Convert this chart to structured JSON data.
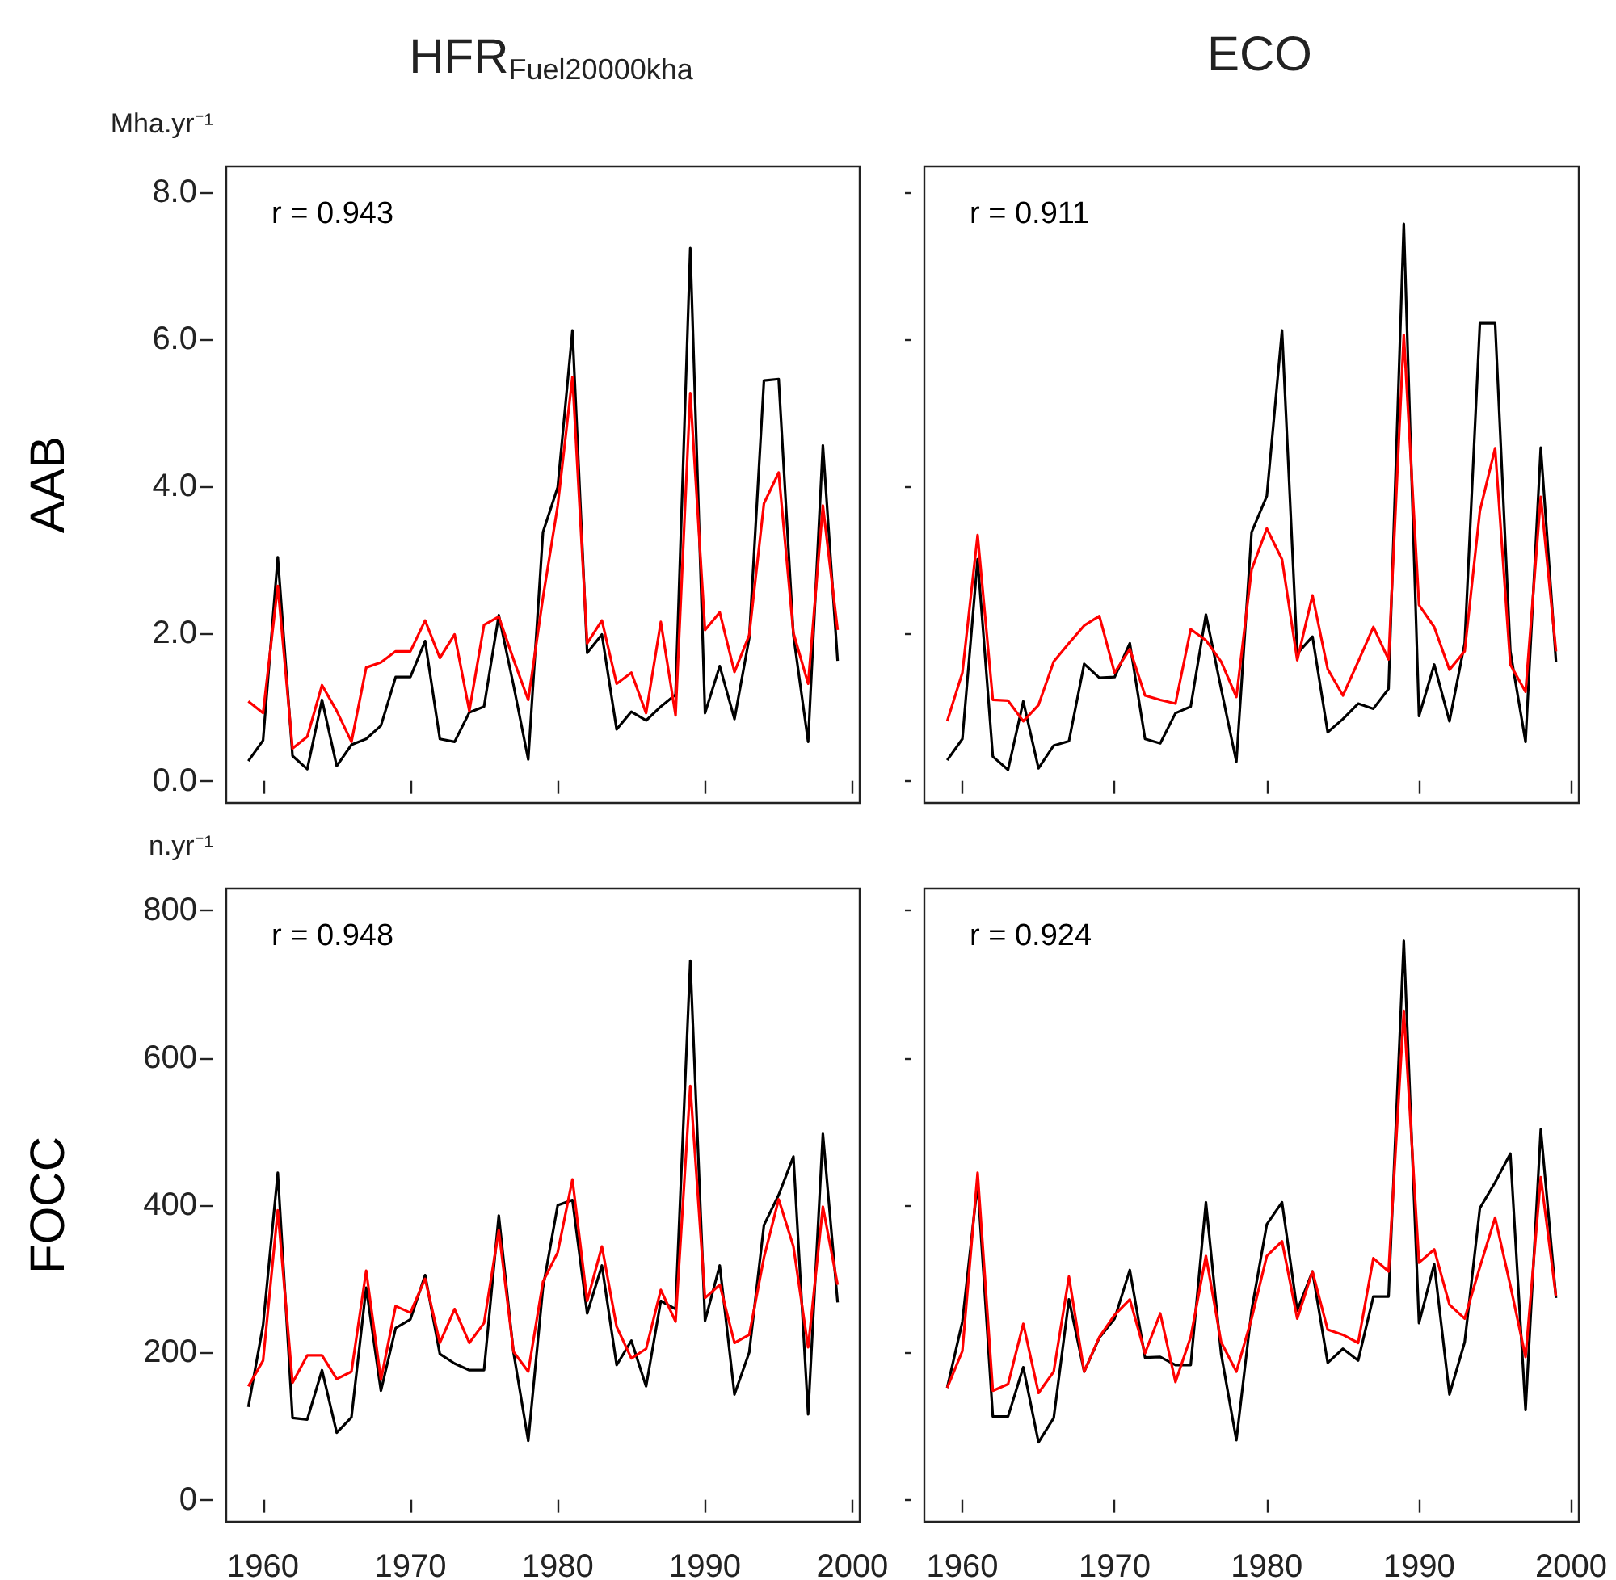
{
  "chart_data": [
    {
      "type": "line",
      "title": "HFR$_{Fuel20000kha}$",
      "ylabel": "Mha.yr⁻¹",
      "annotations": [
        "r = 0.943",
        "AAB"
      ],
      "tick_labels": "y",
      "x": [
        1959,
        1960,
        1961,
        1962,
        1963,
        1964,
        1965,
        1966,
        1967,
        1968,
        1969,
        1970,
        1971,
        1972,
        1973,
        1974,
        1975,
        1976,
        1977,
        1978,
        1979,
        1980,
        1981,
        1982,
        1983,
        1984,
        1985,
        1986,
        1987,
        1988,
        1989,
        1990,
        1991,
        1992,
        1993,
        1994,
        1995,
        1996,
        1997,
        1998,
        1999
      ],
      "xlim": [
        1957.5,
        2000.5
      ],
      "xticks": [
        1960,
        1970,
        1980,
        1990,
        2000
      ],
      "ylim": [
        -0.3,
        8.35
      ],
      "yticks": [
        {
          "value": 0,
          "label": "0.0"
        },
        {
          "value": 2,
          "label": "2.0"
        },
        {
          "value": 4,
          "label": "4.0"
        },
        {
          "value": 6,
          "label": "6.0"
        },
        {
          "value": 8,
          "label": "8.0"
        }
      ],
      "series": [
        {
          "color": "#000000",
          "values": [
            0.27,
            0.55,
            3.04,
            0.34,
            0.16,
            1.1,
            0.2,
            0.49,
            0.57,
            0.75,
            1.41,
            1.41,
            1.9,
            0.57,
            0.53,
            0.93,
            1.01,
            2.25,
            1.3,
            0.29,
            3.38,
            3.99,
            6.12,
            1.74,
            1.99,
            0.7,
            0.94,
            0.82,
            1.01,
            1.17,
            7.24,
            0.92,
            1.56,
            0.84,
            1.94,
            5.44,
            5.46,
            1.98,
            0.53,
            4.56,
            1.63
          ]
        },
        {
          "color": "#ff0000",
          "values": [
            1.08,
            0.92,
            2.65,
            0.44,
            0.6,
            1.3,
            0.95,
            0.53,
            1.54,
            1.61,
            1.76,
            1.76,
            2.18,
            1.67,
            1.99,
            0.95,
            2.12,
            2.23,
            1.65,
            1.1,
            2.49,
            3.74,
            5.49,
            1.87,
            2.18,
            1.32,
            1.47,
            0.92,
            2.16,
            0.89,
            5.27,
            2.05,
            2.29,
            1.48,
            1.98,
            3.77,
            4.19,
            2.01,
            1.32,
            3.74,
            2.05
          ]
        }
      ]
    },
    {
      "type": "line",
      "title": "ECO",
      "annotations": [
        "r = 0.911"
      ],
      "tick_labels": false,
      "x": [
        1959,
        1960,
        1961,
        1962,
        1963,
        1964,
        1965,
        1966,
        1967,
        1968,
        1969,
        1970,
        1971,
        1972,
        1973,
        1974,
        1975,
        1976,
        1977,
        1978,
        1979,
        1980,
        1981,
        1982,
        1983,
        1984,
        1985,
        1986,
        1987,
        1988,
        1989,
        1990,
        1991,
        1992,
        1993,
        1994,
        1995,
        1996,
        1997,
        1998,
        1999
      ],
      "xlim": [
        1957.5,
        2000.5
      ],
      "xticks": [
        1960,
        1970,
        1980,
        1990,
        2000
      ],
      "ylim": [
        -0.3,
        8.35
      ],
      "yticks": [
        0,
        2,
        4,
        6,
        8
      ],
      "series": [
        {
          "color": "#000000",
          "values": [
            0.28,
            0.57,
            3.01,
            0.33,
            0.15,
            1.08,
            0.17,
            0.48,
            0.54,
            1.59,
            1.4,
            1.41,
            1.87,
            0.57,
            0.51,
            0.92,
            1.01,
            2.26,
            1.25,
            0.26,
            3.38,
            3.87,
            6.12,
            1.73,
            1.96,
            0.66,
            0.84,
            1.05,
            0.98,
            1.25,
            7.57,
            0.88,
            1.58,
            0.81,
            1.87,
            6.22,
            6.22,
            1.76,
            0.53,
            4.53,
            1.62
          ]
        },
        {
          "color": "#ff0000",
          "values": [
            0.81,
            1.47,
            3.34,
            1.1,
            1.09,
            0.81,
            1.03,
            1.62,
            1.87,
            2.11,
            2.24,
            1.47,
            1.79,
            1.16,
            1.1,
            1.05,
            2.06,
            1.91,
            1.62,
            1.14,
            2.87,
            3.43,
            3.01,
            1.64,
            2.52,
            1.52,
            1.16,
            1.62,
            2.09,
            1.65,
            6.06,
            2.39,
            2.09,
            1.51,
            1.76,
            3.67,
            4.52,
            1.58,
            1.21,
            3.86,
            1.76
          ]
        }
      ]
    },
    {
      "type": "line",
      "ylabel": "n.yr⁻¹",
      "annotations": [
        "r = 0.948",
        "FOCC"
      ],
      "x": [
        1959,
        1960,
        1961,
        1962,
        1963,
        1964,
        1965,
        1966,
        1967,
        1968,
        1969,
        1970,
        1971,
        1972,
        1973,
        1974,
        1975,
        1976,
        1977,
        1978,
        1979,
        1980,
        1981,
        1982,
        1983,
        1984,
        1985,
        1986,
        1987,
        1988,
        1989,
        1990,
        1991,
        1992,
        1993,
        1994,
        1995,
        1996,
        1997,
        1998,
        1999
      ],
      "xlim": [
        1957.5,
        2000.5
      ],
      "xticks": [
        1960,
        1970,
        1980,
        1990,
        2000
      ],
      "ylim": [
        -30,
        830
      ],
      "yticks": [
        0,
        200,
        400,
        600,
        800
      ],
      "series": [
        {
          "color": "#000000",
          "values": [
            126,
            237,
            444,
            111,
            109,
            176,
            91,
            112,
            288,
            148,
            233,
            245,
            305,
            198,
            185,
            176,
            176,
            386,
            200,
            80,
            288,
            400,
            407,
            253,
            318,
            183,
            216,
            154,
            270,
            259,
            732,
            243,
            318,
            143,
            200,
            373,
            414,
            466,
            116,
            497,
            268
          ]
        },
        {
          "color": "#ff0000",
          "values": [
            154,
            189,
            393,
            159,
            196,
            196,
            164,
            174,
            311,
            163,
            263,
            254,
            300,
            213,
            259,
            213,
            240,
            366,
            201,
            174,
            296,
            336,
            435,
            270,
            344,
            235,
            192,
            205,
            285,
            242,
            562,
            274,
            292,
            213,
            224,
            329,
            408,
            344,
            207,
            398,
            292
          ]
        }
      ]
    },
    {
      "type": "line",
      "annotations": [
        "r = 0.924"
      ],
      "tick_labels": "x",
      "x": [
        1959,
        1960,
        1961,
        1962,
        1963,
        1964,
        1965,
        1966,
        1967,
        1968,
        1969,
        1970,
        1971,
        1972,
        1973,
        1974,
        1975,
        1976,
        1977,
        1978,
        1979,
        1980,
        1981,
        1982,
        1983,
        1984,
        1985,
        1986,
        1987,
        1988,
        1989,
        1990,
        1991,
        1992,
        1993,
        1994,
        1995,
        1996,
        1997,
        1998,
        1999
      ],
      "xlim": [
        1957.5,
        2000.5
      ],
      "xticks": [
        1960,
        1970,
        1980,
        1990,
        2000
      ],
      "ylim": [
        -30,
        830
      ],
      "yticks": [
        0,
        200,
        400,
        600,
        800
      ],
      "series": [
        {
          "color": "#000000",
          "values": [
            152,
            242,
            430,
            113,
            113,
            180,
            78,
            111,
            272,
            174,
            220,
            246,
            312,
            193,
            194,
            183,
            183,
            404,
            198,
            81,
            257,
            374,
            404,
            257,
            310,
            186,
            205,
            189,
            276,
            276,
            759,
            240,
            320,
            143,
            214,
            396,
            431,
            470,
            122,
            503,
            274
          ]
        },
        {
          "color": "#ff0000",
          "values": [
            152,
            202,
            444,
            148,
            157,
            239,
            145,
            174,
            303,
            174,
            221,
            251,
            272,
            199,
            253,
            160,
            221,
            331,
            214,
            174,
            246,
            331,
            351,
            246,
            310,
            231,
            224,
            213,
            328,
            310,
            664,
            322,
            340,
            265,
            246,
            316,
            383,
            291,
            194,
            438,
            276
          ]
        }
      ]
    }
  ]
}
